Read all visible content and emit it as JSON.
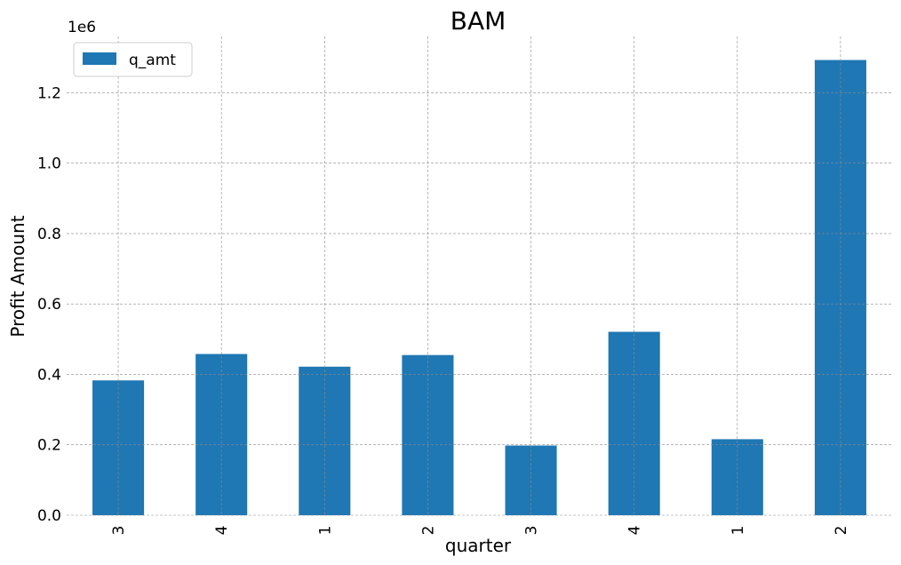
{
  "chart_data": {
    "type": "bar",
    "title": "BAM",
    "xlabel": "quarter",
    "ylabel": "Profit Amount",
    "y_offset_label": "1e6",
    "categories": [
      "3",
      "4",
      "1",
      "2",
      "3",
      "4",
      "1",
      "2"
    ],
    "series": [
      {
        "name": "q_amt",
        "values": [
          383000,
          458000,
          422000,
          455000,
          198000,
          521000,
          216000,
          1293000
        ],
        "color": "#1f77b4"
      }
    ],
    "ylim": [
      0,
      1360000
    ],
    "yticks": [
      0,
      200000,
      400000,
      600000,
      800000,
      1000000,
      1200000
    ],
    "ytick_labels": [
      "0.0",
      "0.2",
      "0.4",
      "0.6",
      "0.8",
      "1.0",
      "1.2"
    ],
    "grid": true,
    "legend_position": "top-left"
  }
}
